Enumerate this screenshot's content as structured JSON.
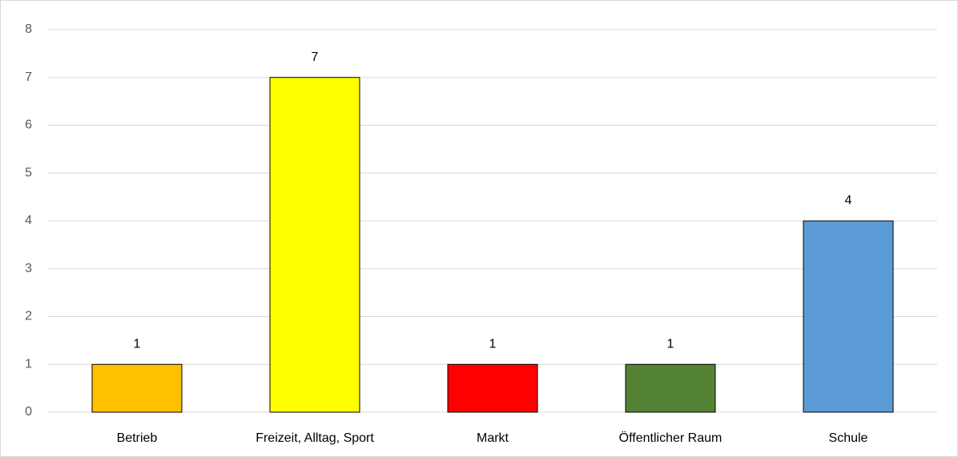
{
  "chart_data": {
    "type": "bar",
    "categories": [
      "Betrieb",
      "Freizeit, Alltag, Sport",
      "Markt",
      "Öffentlicher Raum",
      "Schule"
    ],
    "values": [
      1,
      7,
      1,
      1,
      4
    ],
    "colors": [
      "#ffc000",
      "#ffff00",
      "#ff0000",
      "#548235",
      "#5b9bd5"
    ],
    "ylim": [
      0,
      8
    ],
    "yticks": [
      0,
      1,
      2,
      3,
      4,
      5,
      6,
      7,
      8
    ],
    "grid": true
  }
}
